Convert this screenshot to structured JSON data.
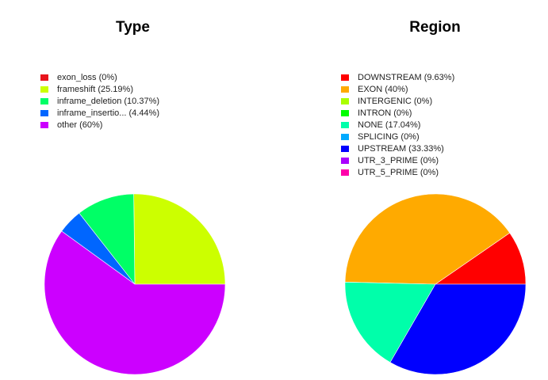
{
  "chart_data": [
    {
      "type": "pie",
      "title": "Type",
      "legend_position": "top-left",
      "slices": [
        {
          "label": "exon_loss",
          "legend_text": "exon_loss (0%)",
          "value": 0,
          "color": "#e8141c"
        },
        {
          "label": "frameshift",
          "legend_text": "frameshift (25.19%)",
          "value": 25.19,
          "color": "#ccff00"
        },
        {
          "label": "inframe_deletion",
          "legend_text": "inframe_deletion (10.37%)",
          "value": 10.37,
          "color": "#00ff66"
        },
        {
          "label": "inframe_insertio...",
          "legend_text": "inframe_insertio... (4.44%)",
          "value": 4.44,
          "color": "#0066ff"
        },
        {
          "label": "other",
          "legend_text": "other (60%)",
          "value": 60,
          "color": "#cc00ff"
        }
      ]
    },
    {
      "type": "pie",
      "title": "Region",
      "legend_position": "top-left",
      "slices": [
        {
          "label": "DOWNSTREAM",
          "legend_text": "DOWNSTREAM (9.63%)",
          "value": 9.63,
          "color": "#ff0000"
        },
        {
          "label": "EXON",
          "legend_text": "EXON (40%)",
          "value": 40,
          "color": "#ffaa00"
        },
        {
          "label": "INTERGENIC",
          "legend_text": "INTERGENIC (0%)",
          "value": 0,
          "color": "#aaff00"
        },
        {
          "label": "INTRON",
          "legend_text": "INTRON (0%)",
          "value": 0,
          "color": "#00ff00"
        },
        {
          "label": "NONE",
          "legend_text": "NONE (17.04%)",
          "value": 17.04,
          "color": "#00ffaa"
        },
        {
          "label": "SPLICING",
          "legend_text": "SPLICING (0%)",
          "value": 0,
          "color": "#00aaff"
        },
        {
          "label": "UPSTREAM",
          "legend_text": "UPSTREAM (33.33%)",
          "value": 33.33,
          "color": "#0000ff"
        },
        {
          "label": "UTR_3_PRIME",
          "legend_text": "UTR_3_PRIME (0%)",
          "value": 0,
          "color": "#aa00ff"
        },
        {
          "label": "UTR_5_PRIME",
          "legend_text": "UTR_5_PRIME (0%)",
          "value": 0,
          "color": "#ff00aa"
        }
      ]
    }
  ]
}
